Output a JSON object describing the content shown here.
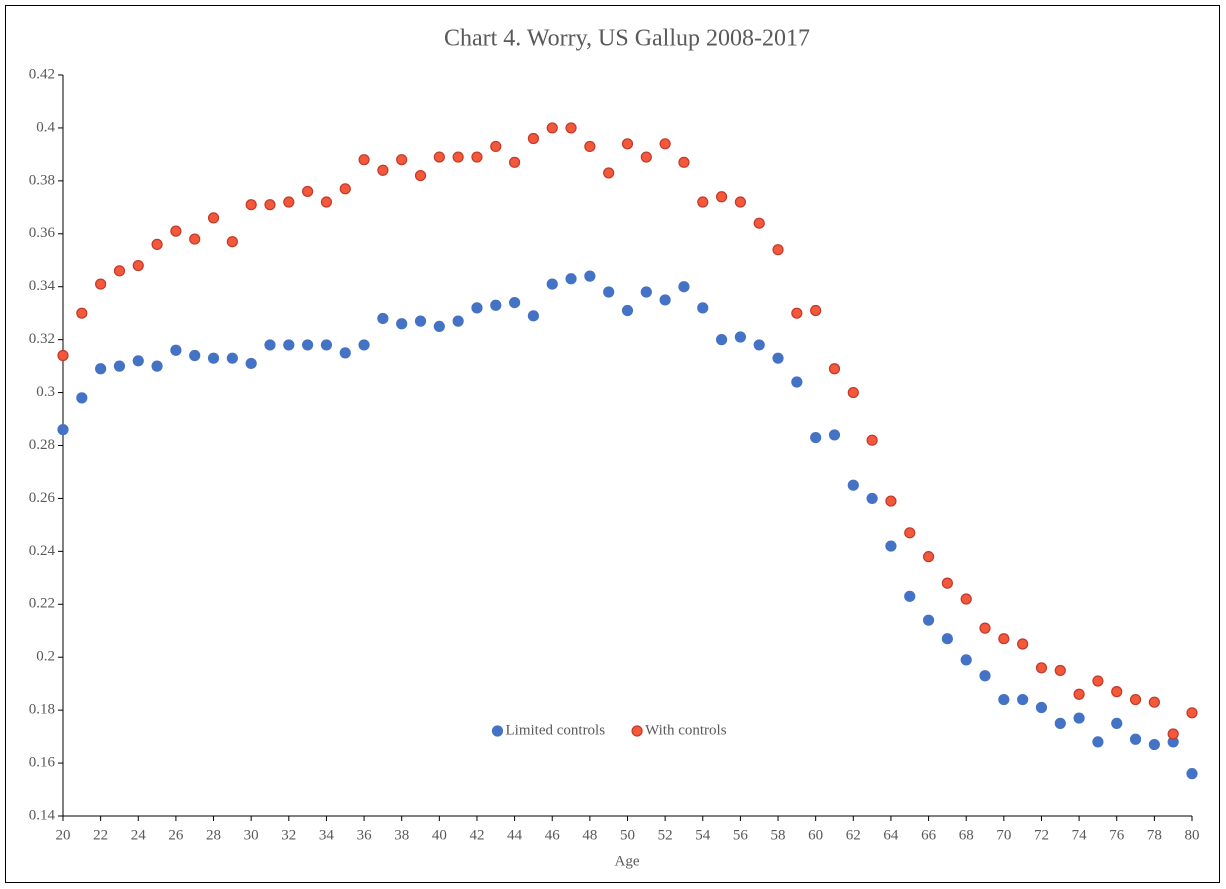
{
  "chart_data": {
    "type": "scatter",
    "title": "Chart  4. Worry, US Gallup 2008-2017",
    "xlabel": "Age",
    "x": [
      20,
      21,
      22,
      23,
      24,
      25,
      26,
      27,
      28,
      29,
      30,
      31,
      32,
      33,
      34,
      35,
      36,
      37,
      38,
      39,
      40,
      41,
      42,
      43,
      44,
      45,
      46,
      47,
      48,
      49,
      50,
      51,
      52,
      53,
      54,
      55,
      56,
      57,
      58,
      59,
      60,
      61,
      62,
      63,
      64,
      65,
      66,
      67,
      68,
      69,
      70,
      71,
      72,
      73,
      74,
      75,
      76,
      77,
      78,
      79,
      80
    ],
    "series": [
      {
        "name": "Limited controls",
        "color": "#4472c4",
        "edgecolor": "#4472c4",
        "values": [
          0.286,
          0.298,
          0.309,
          0.31,
          0.312,
          0.31,
          0.316,
          0.314,
          0.313,
          0.313,
          0.311,
          0.318,
          0.318,
          0.318,
          0.318,
          0.315,
          0.318,
          0.328,
          0.326,
          0.327,
          0.325,
          0.327,
          0.332,
          0.333,
          0.334,
          0.329,
          0.341,
          0.343,
          0.344,
          0.338,
          0.331,
          0.338,
          0.335,
          0.34,
          0.332,
          0.32,
          0.321,
          0.318,
          0.313,
          0.304,
          0.283,
          0.284,
          0.265,
          0.26,
          0.242,
          0.223,
          0.214,
          0.207,
          0.199,
          0.193,
          0.184,
          0.184,
          0.181,
          0.175,
          0.177,
          0.168,
          0.175,
          0.169,
          0.167,
          0.168,
          0.156
        ]
      },
      {
        "name": "With controls",
        "color": "#f4583a",
        "edgecolor": "#c0392b",
        "values": [
          0.314,
          0.33,
          0.341,
          0.346,
          0.348,
          0.356,
          0.361,
          0.358,
          0.366,
          0.357,
          0.371,
          0.371,
          0.372,
          0.376,
          0.372,
          0.377,
          0.388,
          0.384,
          0.388,
          0.382,
          0.389,
          0.389,
          0.389,
          0.393,
          0.387,
          0.396,
          0.4,
          0.4,
          0.393,
          0.383,
          0.394,
          0.389,
          0.394,
          0.387,
          0.372,
          0.374,
          0.372,
          0.364,
          0.354,
          0.33,
          0.331,
          0.309,
          0.3,
          0.282,
          0.259,
          0.247,
          0.238,
          0.228,
          0.222,
          0.211,
          0.207,
          0.205,
          0.196,
          0.195,
          0.186,
          0.191,
          0.187,
          0.184,
          0.183,
          0.171,
          0.179
        ]
      }
    ],
    "xlim": [
      20,
      80
    ],
    "xticks": [
      20,
      22,
      24,
      26,
      28,
      30,
      32,
      34,
      36,
      38,
      40,
      42,
      44,
      46,
      48,
      50,
      52,
      54,
      56,
      58,
      60,
      62,
      64,
      66,
      68,
      70,
      72,
      74,
      76,
      78,
      80
    ],
    "ylim": [
      0.14,
      0.42
    ],
    "yticks": [
      0.14,
      0.16,
      0.18,
      0.2,
      0.22,
      0.24,
      0.26,
      0.28,
      0.3,
      0.32,
      0.34,
      0.36,
      0.38,
      0.4,
      0.42
    ],
    "grid": false,
    "legend": "lower center"
  }
}
